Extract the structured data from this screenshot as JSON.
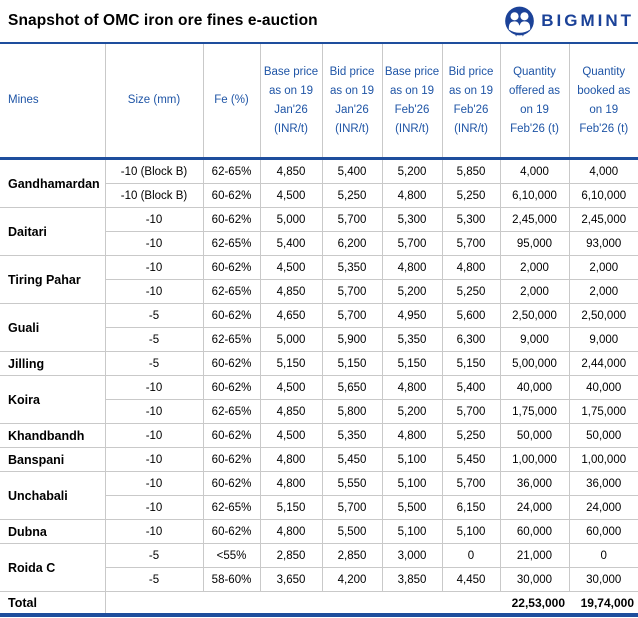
{
  "title": "Snapshot of OMC iron ore fines e-auction",
  "logo": {
    "brand": "BIGMINT",
    "color": "#1b4298"
  },
  "colors": {
    "accent_navy": "#1e4e9d",
    "header_text": "#1f55a6",
    "grid_line": "#c9c9c9"
  },
  "table": {
    "columns": [
      "Mines",
      "Size (mm)",
      "Fe (%)",
      "Base price as on 19 Jan'26 (INR/t)",
      "Bid price as on 19 Jan'26 (INR/t)",
      "Base price as on 19 Feb'26 (INR/t)",
      "Bid price as on 19 Feb'26 (INR/t)",
      "Quantity offered as on 19 Feb'26 (t)",
      "Quantity booked as on 19 Feb'26 (t)"
    ],
    "groups": [
      {
        "mine": "Gandhamardan",
        "rows": [
          [
            "-10 (Block B)",
            "62-65%",
            "4,850",
            "5,400",
            "5,200",
            "5,850",
            "4,000",
            "4,000"
          ],
          [
            "-10 (Block B)",
            "60-62%",
            "4,500",
            "5,250",
            "4,800",
            "5,250",
            "6,10,000",
            "6,10,000"
          ]
        ]
      },
      {
        "mine": "Daitari",
        "rows": [
          [
            "-10",
            "60-62%",
            "5,000",
            "5,700",
            "5,300",
            "5,300",
            "2,45,000",
            "2,45,000"
          ],
          [
            "-10",
            "62-65%",
            "5,400",
            "6,200",
            "5,700",
            "5,700",
            "95,000",
            "93,000"
          ]
        ]
      },
      {
        "mine": "Tiring Pahar",
        "rows": [
          [
            "-10",
            "60-62%",
            "4,500",
            "5,350",
            "4,800",
            "4,800",
            "2,000",
            "2,000"
          ],
          [
            "-10",
            "62-65%",
            "4,850",
            "5,700",
            "5,200",
            "5,250",
            "2,000",
            "2,000"
          ]
        ]
      },
      {
        "mine": "Guali",
        "rows": [
          [
            "-5",
            "60-62%",
            "4,650",
            "5,700",
            "4,950",
            "5,600",
            "2,50,000",
            "2,50,000"
          ],
          [
            "-5",
            "62-65%",
            "5,000",
            "5,900",
            "5,350",
            "6,300",
            "9,000",
            "9,000"
          ]
        ]
      },
      {
        "mine": "Jilling",
        "rows": [
          [
            "-5",
            "60-62%",
            "5,150",
            "5,150",
            "5,150",
            "5,150",
            "5,00,000",
            "2,44,000"
          ]
        ]
      },
      {
        "mine": "Koira",
        "rows": [
          [
            "-10",
            "60-62%",
            "4,500",
            "5,650",
            "4,800",
            "5,400",
            "40,000",
            "40,000"
          ],
          [
            "-10",
            "62-65%",
            "4,850",
            "5,800",
            "5,200",
            "5,700",
            "1,75,000",
            "1,75,000"
          ]
        ]
      },
      {
        "mine": "Khandbandh",
        "rows": [
          [
            "-10",
            "60-62%",
            "4,500",
            "5,350",
            "4,800",
            "5,250",
            "50,000",
            "50,000"
          ]
        ]
      },
      {
        "mine": "Banspani",
        "rows": [
          [
            "-10",
            "60-62%",
            "4,800",
            "5,450",
            "5,100",
            "5,450",
            "1,00,000",
            "1,00,000"
          ]
        ]
      },
      {
        "mine": "Unchabali",
        "rows": [
          [
            "-10",
            "60-62%",
            "4,800",
            "5,550",
            "5,100",
            "5,700",
            "36,000",
            "36,000"
          ],
          [
            "-10",
            "62-65%",
            "5,150",
            "5,700",
            "5,500",
            "6,150",
            "24,000",
            "24,000"
          ]
        ]
      },
      {
        "mine": "Dubna",
        "rows": [
          [
            "-10",
            "60-62%",
            "4,800",
            "5,500",
            "5,100",
            "5,100",
            "60,000",
            "60,000"
          ]
        ]
      },
      {
        "mine": "Roida C",
        "rows": [
          [
            "-5",
            "<55%",
            "2,850",
            "2,850",
            "3,000",
            "0",
            "21,000",
            "0"
          ],
          [
            "-5",
            "58-60%",
            "3,650",
            "4,200",
            "3,850",
            "4,450",
            "30,000",
            "30,000"
          ]
        ]
      }
    ],
    "total": {
      "label": "Total",
      "quantity_offered": "22,53,000",
      "quantity_booked": "19,74,000"
    }
  }
}
